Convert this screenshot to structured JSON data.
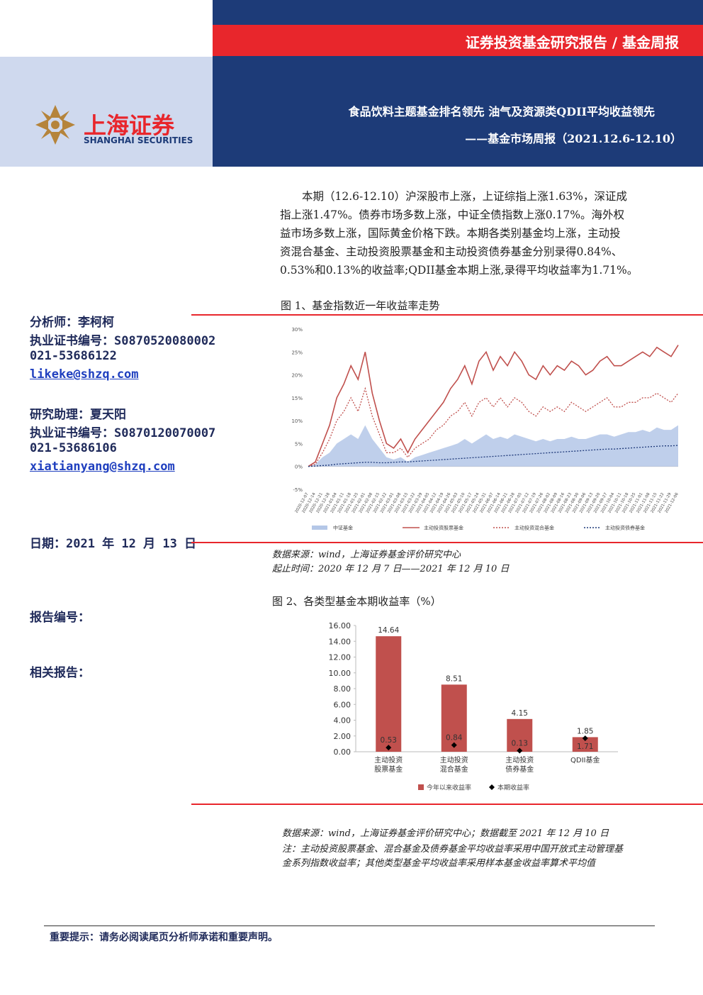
{
  "header": {
    "report_type": "证券投资基金研究报告 / 基金周报",
    "logo_cn": "上海证券",
    "logo_en": "SHANGHAI SECURITIES",
    "title": "食品饮料主题基金排名领先 油气及资源类QDII平均收益领先",
    "subtitle": "——基金市场周报（2021.12.6-12.10）"
  },
  "sidebar": {
    "analyst": "分析师：李柯柯",
    "analyst_cert": "执业证书编号：S0870520080002",
    "analyst_phone": "021-53686122",
    "analyst_email": "likeke@shzq.com",
    "assistant": "研究助理：夏天阳",
    "assistant_cert": "执业证书编号：S0870120070007",
    "assistant_phone": "021-53686106",
    "assistant_email": "xiatianyang@shzq.com",
    "date": "日期：2021 年 12 月 13 日",
    "report_no": "报告编号：",
    "related": "相关报告："
  },
  "summary": [
    "本期（12.6-12.10）沪深股市上涨，上证综指上涨1.63%，深证成",
    "指上涨1.47%。债券市场多数上涨，中证全债指数上涨0.17%。海外权",
    "益市场多数上涨，国际黄金价格下跌。本期各类别基金均上涨，主动投",
    "资混合基金、主动投资股票基金和主动投资债券基金分别录得0.84%、",
    "0.53%和0.13%的收益率;QDII基金本期上涨,录得平均收益率为1.71%。"
  ],
  "figure1": {
    "caption": "图 1、基金指数近一年收益率走势",
    "source": "数据来源：wind，上海证券基金评价研究中心",
    "period": "起止时间：2020 年 12 月 7 日——2021 年 12 月 10 日"
  },
  "figure2": {
    "caption": "图 2、各类型基金本期收益率（%）",
    "source": "数据来源：wind，上海证券基金评价研究中心；数据截至 2021 年 12 月 10 日",
    "note": [
      "注：主动投资股票基金、混合基金及债券基金平均收益率采用中国开放式主动管理基",
      "金系列指数收益率；其他类型基金平均收益率采用样本基金收益率算术平均值"
    ]
  },
  "footer": "重要提示：请务必阅读尾页分析师承诺和重要声明。",
  "chart_data": [
    {
      "type": "line",
      "categories": [
        "2020-12-07",
        "2020-12-14",
        "2020-12-21",
        "2020-12-28",
        "2021-01-04",
        "2021-01-11",
        "2021-01-18",
        "2021-01-25",
        "2021-02-01",
        "2021-02-08",
        "2021-02-15",
        "2021-02-22",
        "2021-03-01",
        "2021-03-08",
        "2021-03-15",
        "2021-03-22",
        "2021-03-29",
        "2021-04-05",
        "2021-04-12",
        "2021-04-19",
        "2021-04-26",
        "2021-05-03",
        "2021-05-10",
        "2021-05-17",
        "2021-05-24",
        "2021-05-31",
        "2021-06-07",
        "2021-06-14",
        "2021-06-21",
        "2021-06-28",
        "2021-07-05",
        "2021-07-12",
        "2021-07-19",
        "2021-07-26",
        "2021-08-02",
        "2021-08-09",
        "2021-08-16",
        "2021-08-23",
        "2021-08-30",
        "2021-09-06",
        "2021-09-13",
        "2021-09-20",
        "2021-09-27",
        "2021-10-04",
        "2021-10-11",
        "2021-10-18",
        "2021-10-25",
        "2021-11-01",
        "2021-11-08",
        "2021-11-15",
        "2021-11-22",
        "2021-11-29",
        "2021-12-06"
      ],
      "ylim": [
        -5,
        30
      ],
      "yticks": [
        {
          "value": -5,
          "label": "-5%"
        },
        {
          "value": 0,
          "label": "0%"
        },
        {
          "value": 5,
          "label": "5%"
        },
        {
          "value": 10,
          "label": "10%"
        },
        {
          "value": 15,
          "label": "15%"
        },
        {
          "value": 20,
          "label": "20%"
        },
        {
          "value": 25,
          "label": "25%"
        },
        {
          "value": 30,
          "label": "30%"
        }
      ],
      "grid": false,
      "series": [
        {
          "name": "中证基金",
          "color": "#b4c7e7",
          "style": "area",
          "values": [
            0,
            0.5,
            2,
            3,
            5,
            6,
            7,
            6,
            9,
            6,
            4,
            2,
            1.5,
            2,
            1,
            2,
            2.5,
            3,
            3.5,
            4,
            4.5,
            5,
            6,
            5,
            6,
            7,
            6,
            6.5,
            6,
            7,
            6.5,
            6,
            5.5,
            6,
            5.5,
            6,
            6,
            6.5,
            6,
            6,
            6.5,
            7,
            7,
            6.5,
            7,
            7.5,
            7.5,
            8,
            7.5,
            8.5,
            8,
            8,
            9
          ]
        },
        {
          "name": "主动投资股票基金",
          "color": "#c0504d",
          "style": "solid",
          "values": [
            0,
            1,
            5,
            9,
            15,
            18,
            22,
            19,
            25,
            16,
            10,
            5,
            4,
            6,
            3,
            6,
            8,
            10,
            12,
            14,
            17,
            19,
            22,
            18,
            23,
            25,
            21,
            24,
            22,
            25,
            23,
            20,
            19,
            22,
            20,
            22,
            21,
            23,
            22,
            20,
            21,
            23,
            24,
            22,
            22,
            23,
            24,
            25,
            24,
            26,
            25,
            24,
            26.5
          ]
        },
        {
          "name": "主动投资混合基金",
          "color": "#c0504d",
          "style": "dotted",
          "values": [
            0,
            0.5,
            3,
            6,
            10,
            12,
            15,
            12,
            17,
            11,
            7,
            3,
            3,
            4,
            2,
            4,
            5,
            6,
            8,
            9,
            11,
            12,
            14,
            11,
            14,
            15,
            13,
            15,
            13,
            15,
            14,
            12,
            11,
            13,
            12,
            13,
            12,
            14,
            13,
            12,
            13,
            14,
            15,
            13,
            13,
            14,
            14,
            15,
            15,
            16,
            15,
            14,
            16
          ]
        },
        {
          "name": "主动投资债券基金",
          "color": "#1f3a7a",
          "style": "dotted",
          "values": [
            0,
            0.1,
            0.2,
            0.3,
            0.5,
            0.6,
            0.7,
            0.8,
            0.9,
            0.9,
            0.8,
            0.8,
            0.9,
            1.0,
            1.0,
            1.1,
            1.2,
            1.3,
            1.4,
            1.5,
            1.6,
            1.7,
            1.8,
            1.9,
            2.0,
            2.1,
            2.2,
            2.3,
            2.4,
            2.5,
            2.6,
            2.7,
            2.8,
            2.9,
            3.0,
            3.1,
            3.2,
            3.3,
            3.4,
            3.5,
            3.6,
            3.7,
            3.8,
            3.8,
            3.9,
            4.0,
            4.1,
            4.2,
            4.3,
            4.4,
            4.5,
            4.5,
            4.6
          ]
        }
      ]
    },
    {
      "type": "bar",
      "categories": [
        "主动投资股票基金",
        "主动投资混合基金",
        "主动投资债券基金",
        "QDII基金"
      ],
      "ylim": [
        0,
        16
      ],
      "yticks": [
        {
          "value": 0,
          "label": "0.00"
        },
        {
          "value": 2,
          "label": "2.00"
        },
        {
          "value": 4,
          "label": "4.00"
        },
        {
          "value": 6,
          "label": "6.00"
        },
        {
          "value": 8,
          "label": "8.00"
        },
        {
          "value": 10,
          "label": "10.00"
        },
        {
          "value": 12,
          "label": "12.00"
        },
        {
          "value": 14,
          "label": "14.00"
        },
        {
          "value": 16,
          "label": "16.00"
        }
      ],
      "grid": false,
      "series": [
        {
          "name": "今年以来收益率",
          "color": "#c0504d",
          "style": "bar",
          "values": [
            14.64,
            8.51,
            4.15,
            1.85
          ]
        },
        {
          "name": "本期收益率",
          "color": "#000000",
          "style": "diamond",
          "values": [
            0.53,
            0.84,
            0.13,
            1.71
          ]
        }
      ]
    }
  ]
}
